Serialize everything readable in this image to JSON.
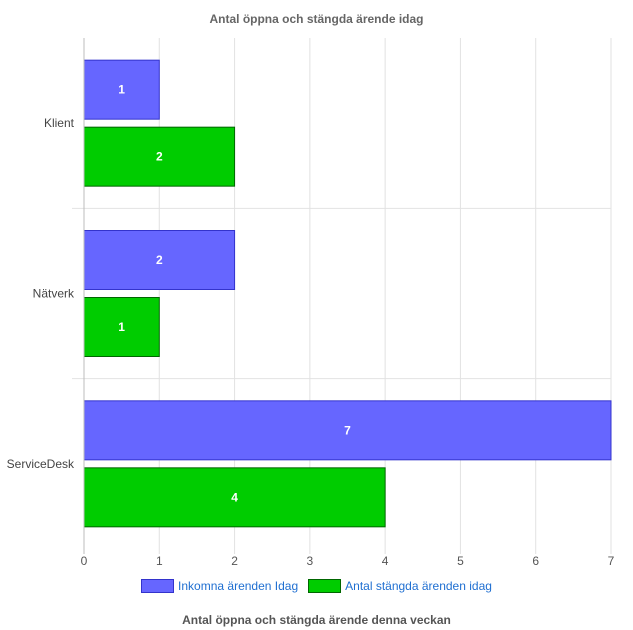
{
  "chart_data": {
    "type": "bar",
    "orientation": "horizontal",
    "title": "Antal öppna och stängda ärende idag",
    "categories": [
      "Klient",
      "Nätverk",
      "ServiceDesk"
    ],
    "series": [
      {
        "name": "Inkomna ärenden Idag",
        "values": [
          1,
          2,
          7
        ],
        "color": "#6666ff",
        "border": "#3333cc"
      },
      {
        "name": "Antal stängda ärenden idag",
        "values": [
          2,
          1,
          4
        ],
        "color": "#00cc00",
        "border": "#006600"
      }
    ],
    "xlim": [
      0,
      7
    ],
    "x_ticks": [
      0,
      1,
      2,
      3,
      4,
      5,
      6,
      7
    ],
    "grid": true,
    "legend_position": "bottom"
  },
  "footer": {
    "title": "Antal öppna och stängda ärende denna veckan"
  }
}
